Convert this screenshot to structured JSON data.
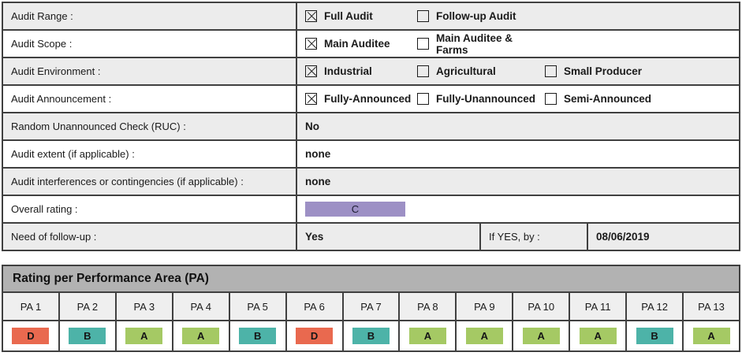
{
  "colors": {
    "border": "#404040",
    "row_gray": "#ececec",
    "header_gray": "#b2b2b2",
    "pa_row_gray": "#efefef",
    "rating_a": "#a5c964",
    "rating_b": "#4db3a8",
    "rating_c": "#9d90c5",
    "rating_d": "#e9694f"
  },
  "audit_form": {
    "rows": [
      {
        "type": "checkboxes",
        "label": "Audit Range :",
        "options": [
          {
            "label": "Full Audit",
            "checked": true
          },
          {
            "label": "Follow-up Audit",
            "checked": false
          }
        ]
      },
      {
        "type": "checkboxes",
        "label": "Audit Scope :",
        "options": [
          {
            "label": "Main Auditee",
            "checked": true
          },
          {
            "label": "Main Auditee & Farms",
            "checked": false
          }
        ]
      },
      {
        "type": "checkboxes",
        "label": "Audit Environment :",
        "options": [
          {
            "label": "Industrial",
            "checked": true
          },
          {
            "label": "Agricultural",
            "checked": false
          },
          {
            "label": "Small Producer",
            "checked": false
          }
        ]
      },
      {
        "type": "checkboxes",
        "label": "Audit Announcement :",
        "options": [
          {
            "label": "Fully-Announced",
            "checked": true
          },
          {
            "label": "Fully-Unannounced",
            "checked": false
          },
          {
            "label": "Semi-Announced",
            "checked": false
          }
        ]
      },
      {
        "type": "value",
        "label": "Random Unannounced Check (RUC) :",
        "value": "No"
      },
      {
        "type": "value",
        "label": "Audit extent (if applicable) :",
        "value": "none"
      },
      {
        "type": "value",
        "label": "Audit interferences or contingencies (if applicable) :",
        "value": "none"
      },
      {
        "type": "rating",
        "label": "Overall rating :",
        "value": "C"
      },
      {
        "type": "followup",
        "label": "Need of follow-up :",
        "value": "Yes",
        "if_yes_label": "If YES, by :",
        "date": "08/06/2019"
      }
    ]
  },
  "pa_table": {
    "title": "Rating per Performance Area (PA)",
    "columns": [
      "PA 1",
      "PA 2",
      "PA 3",
      "PA 4",
      "PA 5",
      "PA 6",
      "PA 7",
      "PA 8",
      "PA 9",
      "PA 10",
      "PA 11",
      "PA 12",
      "PA 13"
    ],
    "ratings": [
      "D",
      "B",
      "A",
      "A",
      "B",
      "D",
      "B",
      "A",
      "A",
      "A",
      "A",
      "B",
      "A"
    ]
  }
}
